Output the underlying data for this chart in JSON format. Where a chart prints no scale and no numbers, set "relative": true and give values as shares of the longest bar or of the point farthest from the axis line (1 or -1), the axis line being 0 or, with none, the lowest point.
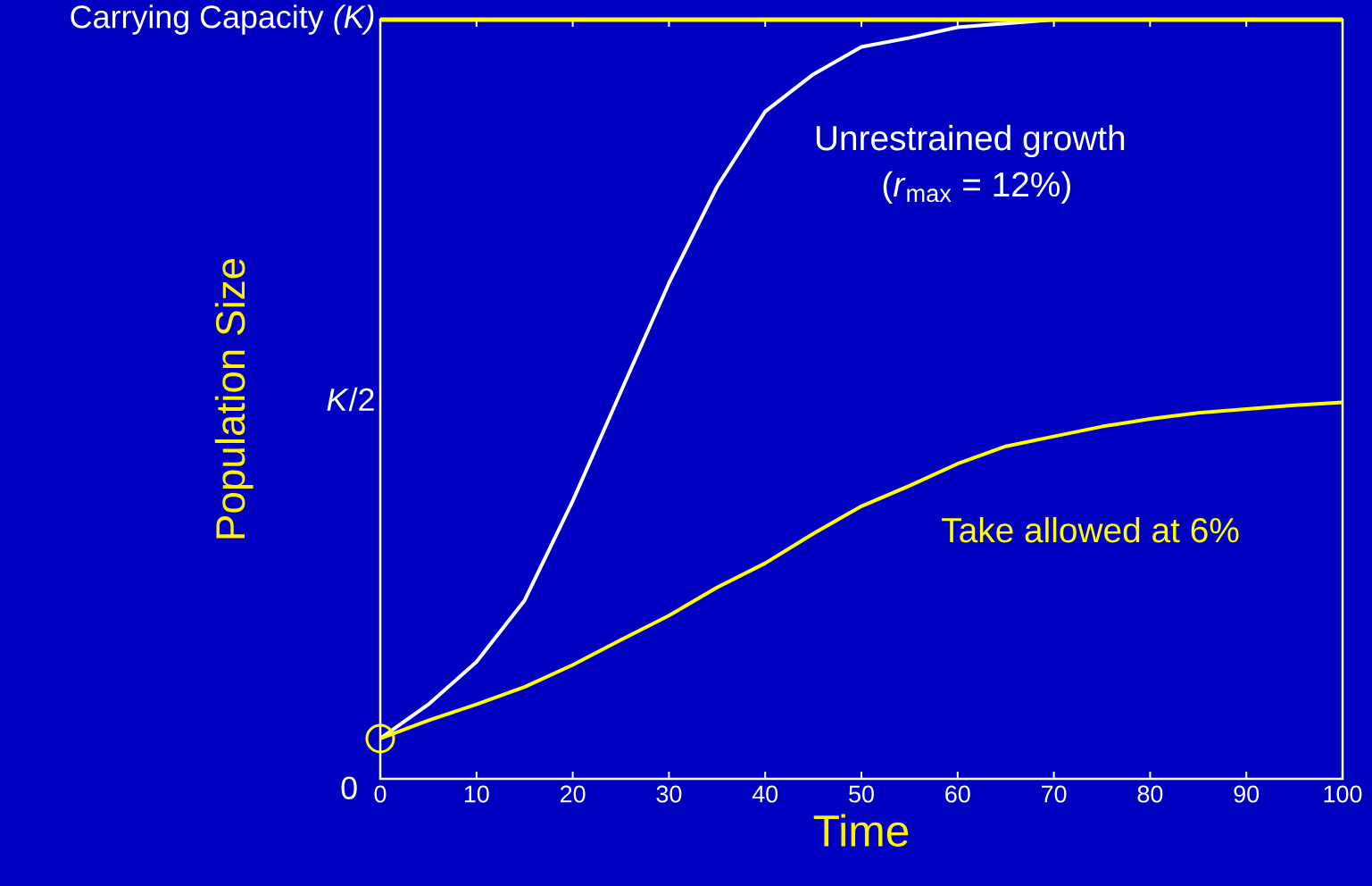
{
  "chart_data": {
    "type": "line",
    "relative": true,
    "xlabel": "Time",
    "ylabel": "Population Size",
    "xlim": [
      0,
      100
    ],
    "xticks": [
      0,
      10,
      20,
      30,
      40,
      50,
      60,
      70,
      80,
      90,
      100
    ],
    "grid": false,
    "line_style": "solid",
    "x": [
      0,
      5,
      10,
      15,
      20,
      25,
      30,
      35,
      40,
      45,
      50,
      55,
      60,
      65,
      70,
      75,
      80,
      85,
      90,
      95,
      100
    ],
    "series": [
      {
        "color": "#ffffff",
        "values": [
          0.053,
          0.098,
          0.154,
          0.235,
          0.366,
          0.51,
          0.653,
          0.78,
          0.879,
          0.928,
          0.964,
          0.976,
          0.99,
          0.995,
          1,
          null,
          null,
          null,
          null,
          null,
          null
        ]
      },
      {
        "color": "#ffff00",
        "values": [
          0.053,
          0.077,
          0.098,
          0.121,
          0.15,
          0.183,
          0.215,
          0.252,
          0.284,
          0.323,
          0.359,
          0.386,
          0.415,
          0.438,
          0.451,
          0.464,
          0.474,
          0.482,
          0.487,
          0.492,
          0.496
        ]
      },
      {
        "type": "scatter",
        "marker": "circle",
        "color": "#ffff00",
        "x": [
          0
        ],
        "values": [
          0.053
        ]
      }
    ],
    "ref_lines": [
      {
        "axis": "y",
        "value": 1,
        "color": "#ffff00"
      }
    ],
    "annotations": [
      "Carrying Capacity *(K)*",
      "*K*/2",
      "0",
      "Unrestrained growth",
      "(*r*$_{max}$ = 12%)",
      "Take allowed at 6%"
    ]
  }
}
